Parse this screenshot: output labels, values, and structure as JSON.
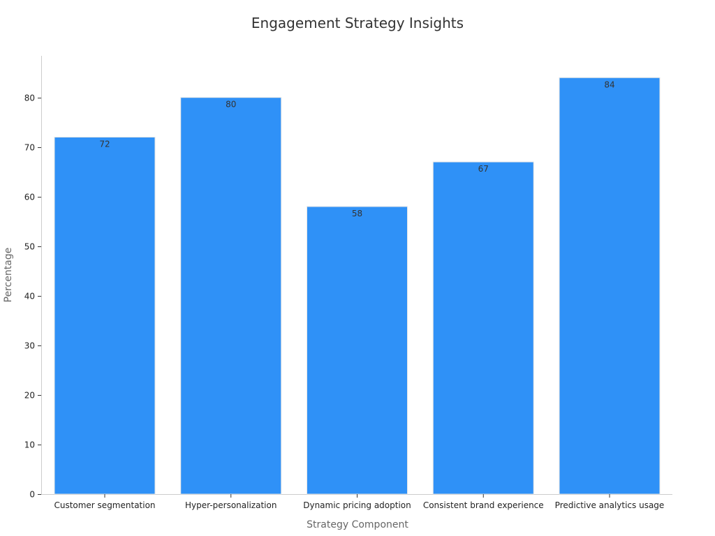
{
  "chart_data": {
    "type": "bar",
    "title": "Engagement Strategy Insights",
    "xlabel": "Strategy Component",
    "ylabel": "Percentage",
    "categories": [
      "Customer segmentation",
      "Hyper-personalization",
      "Dynamic pricing adoption",
      "Consistent brand experience",
      "Predictive analytics usage"
    ],
    "values": [
      72,
      80,
      58,
      67,
      84
    ],
    "ylim": [
      0,
      88.4
    ],
    "yticks": [
      0,
      10,
      20,
      30,
      40,
      50,
      60,
      70,
      80
    ],
    "bar_color": "#2f91f7",
    "bar_edge_color": "#e6e6e6",
    "grid": false,
    "legend": false
  }
}
